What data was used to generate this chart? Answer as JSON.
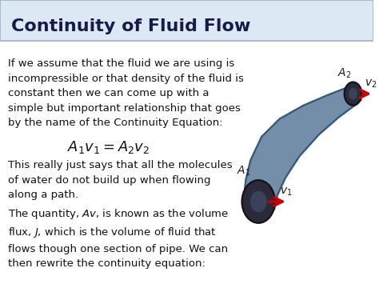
{
  "title": "Continuity of Fluid Flow",
  "title_bg": "#dde8f5",
  "title_color": "#1a1a4a",
  "bg_color": "#ffffff",
  "para1": "If we assume that the fluid we are using is\nincompressible or that density of the fluid is\nconstant then we can come up with a\nsimple but important relationship that goes\nby the name of the Continuity Equation:",
  "equation": "$A_1v_1 = A_2v_2$",
  "para2": "This really just says that all the molecules\nof water do not build up when flowing\nalong a path.",
  "para3": "The quantity, $Av$, is known as the volume\nflux, $J$, which is the volume of fluid that\nflows though one section of pipe. We can\nthen rewrite the continuity equation:",
  "font_size_text": 9.5,
  "font_size_title": 16,
  "font_size_eq": 13,
  "pipe_color": "#5a7a9a",
  "pipe_outline": "#3a5a7a",
  "disk_color_dark": "#2a2a3a",
  "disk_color_mid": "#4a5a7a",
  "arrow_color": "#cc0000",
  "label_color": "#1a1a1a"
}
